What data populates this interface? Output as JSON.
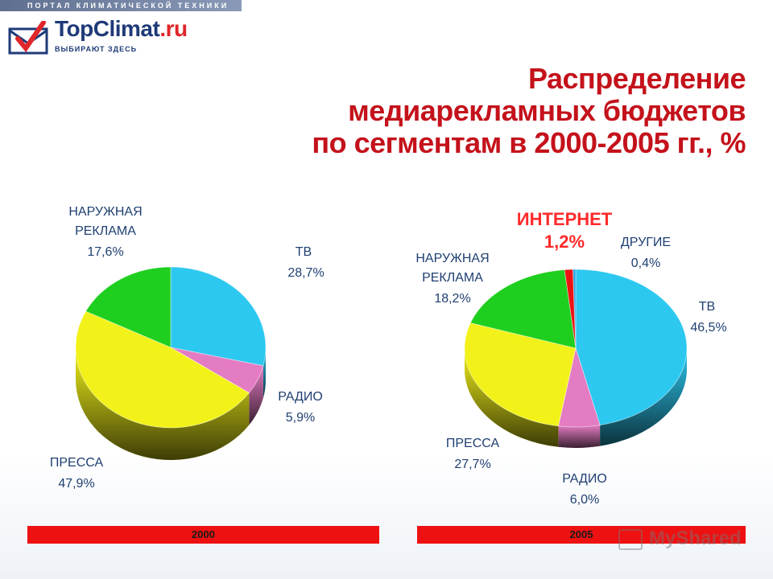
{
  "header": {
    "portal_label": "ПОРТАЛ КЛИМАТИЧЕСКОЙ ТЕХНИКИ",
    "logo_main": "TopClimat",
    "logo_suffix": ".ru",
    "logo_tagline": "ВЫБИРАЮТ ЗДЕСЬ"
  },
  "title_lines": [
    "Распределение",
    "медиарекламных бюджетов",
    "по сегментам в 2000-2005 гг., %"
  ],
  "watermark": "MyShared",
  "colors": {
    "tv": "#2dc8f0",
    "radio": "#e37cc2",
    "press": "#f2f21a",
    "outdoor": "#1fcf1f",
    "internet": "#ee1111",
    "other": "#2aa6e0",
    "title": "#c4121b",
    "year_bar": "#ee1111"
  },
  "chart_data": [
    {
      "type": "pie",
      "year_label": "2000",
      "slices": [
        {
          "key": "tv",
          "label": "ТВ",
          "value": 28.7,
          "value_label": "28,7%"
        },
        {
          "key": "radio",
          "label": "РАДИО",
          "value": 5.9,
          "value_label": "5,9%"
        },
        {
          "key": "press",
          "label": "ПРЕССА",
          "value": 47.9,
          "value_label": "47,9%"
        },
        {
          "key": "outdoor",
          "label": "НАРУЖНАЯ РЕКЛАМА",
          "label_lines": [
            "НАРУЖНАЯ",
            "РЕКЛАМА"
          ],
          "value": 17.6,
          "value_label": "17,6%"
        }
      ]
    },
    {
      "type": "pie",
      "year_label": "2005",
      "slices": [
        {
          "key": "tv",
          "label": "ТВ",
          "value": 46.5,
          "value_label": "46,5%"
        },
        {
          "key": "radio",
          "label": "РАДИО",
          "value": 6.0,
          "value_label": "6,0%"
        },
        {
          "key": "press",
          "label": "ПРЕССА",
          "value": 27.7,
          "value_label": "27,7%"
        },
        {
          "key": "outdoor",
          "label": "НАРУЖНАЯ РЕКЛАМА",
          "label_lines": [
            "НАРУЖНАЯ",
            "РЕКЛАМА"
          ],
          "value": 18.2,
          "value_label": "18,2%"
        },
        {
          "key": "internet",
          "label": "ИНТЕРНЕТ",
          "value": 1.2,
          "value_label": "1,2%"
        },
        {
          "key": "other",
          "label": "ДРУГИЕ",
          "value": 0.4,
          "value_label": "0,4%"
        }
      ]
    }
  ]
}
